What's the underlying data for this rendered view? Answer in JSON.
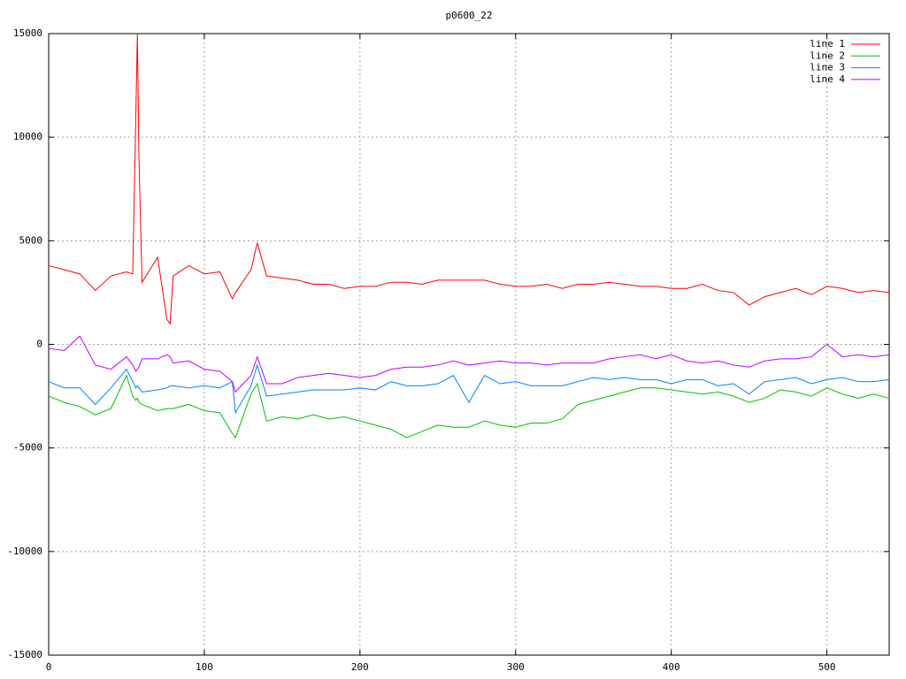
{
  "chart_data": {
    "type": "line",
    "title": "p0600_22",
    "x": [
      0,
      10,
      20,
      30,
      40,
      50,
      54,
      56,
      57,
      58,
      60,
      70,
      76,
      78,
      80,
      90,
      100,
      110,
      118,
      120,
      130,
      134,
      140,
      150,
      160,
      170,
      180,
      190,
      200,
      210,
      220,
      230,
      240,
      250,
      260,
      270,
      280,
      290,
      300,
      310,
      320,
      330,
      340,
      350,
      360,
      370,
      380,
      390,
      400,
      410,
      420,
      430,
      440,
      450,
      460,
      470,
      480,
      490,
      500,
      510,
      520,
      530,
      540
    ],
    "series": [
      {
        "name": "line 1",
        "color": "#ff0000",
        "values": [
          3800,
          3600,
          3400,
          2600,
          3300,
          3500,
          3400,
          11000,
          15000,
          9000,
          3000,
          4200,
          1200,
          1000,
          3300,
          3800,
          3400,
          3500,
          2200,
          2500,
          3600,
          4900,
          3300,
          3200,
          3100,
          2900,
          2900,
          2700,
          2800,
          2800,
          3000,
          3000,
          2900,
          3100,
          3100,
          3100,
          3100,
          2900,
          2800,
          2800,
          2900,
          2700,
          2900,
          2900,
          3000,
          2900,
          2800,
          2800,
          2700,
          2700,
          2900,
          2600,
          2500,
          1900,
          2300,
          2500,
          2700,
          2400,
          2800,
          2700,
          2500,
          2600,
          2500
        ]
      },
      {
        "name": "line 2",
        "color": "#00c000",
        "values": [
          -2500,
          -2800,
          -3000,
          -3400,
          -3100,
          -1500,
          -2500,
          -2700,
          -2600,
          -2800,
          -2900,
          -3200,
          -3100,
          -3100,
          -3100,
          -2900,
          -3200,
          -3300,
          -4300,
          -4500,
          -2400,
          -1900,
          -3700,
          -3500,
          -3600,
          -3400,
          -3600,
          -3500,
          -3700,
          -3900,
          -4100,
          -4500,
          -4200,
          -3900,
          -4000,
          -4000,
          -3700,
          -3900,
          -4000,
          -3800,
          -3800,
          -3600,
          -2900,
          -2700,
          -2500,
          -2300,
          -2100,
          -2100,
          -2200,
          -2300,
          -2400,
          -2300,
          -2500,
          -2800,
          -2600,
          -2200,
          -2300,
          -2500,
          -2100,
          -2400,
          -2600,
          -2400,
          -2600
        ]
      },
      {
        "name": "line 3",
        "color": "#0080ff",
        "values": [
          -1800,
          -2100,
          -2100,
          -2900,
          -2100,
          -1200,
          -1800,
          -2100,
          -2000,
          -2100,
          -2300,
          -2200,
          -2100,
          -2000,
          -2000,
          -2100,
          -2000,
          -2100,
          -1800,
          -3300,
          -2000,
          -1000,
          -2500,
          -2400,
          -2300,
          -2200,
          -2200,
          -2200,
          -2100,
          -2200,
          -1800,
          -2000,
          -2000,
          -1900,
          -1500,
          -2800,
          -1500,
          -1900,
          -1800,
          -2000,
          -2000,
          -2000,
          -1800,
          -1600,
          -1700,
          -1600,
          -1700,
          -1700,
          -1900,
          -1700,
          -1700,
          -2000,
          -1900,
          -2400,
          -1800,
          -1700,
          -1600,
          -1900,
          -1700,
          -1600,
          -1800,
          -1800,
          -1700
        ]
      },
      {
        "name": "line 4",
        "color": "#c000ff",
        "values": [
          -200,
          -300,
          400,
          -1000,
          -1200,
          -600,
          -1000,
          -1300,
          -1200,
          -1100,
          -700,
          -700,
          -500,
          -600,
          -900,
          -800,
          -1200,
          -1300,
          -1800,
          -2300,
          -1500,
          -600,
          -1900,
          -1900,
          -1600,
          -1500,
          -1400,
          -1500,
          -1600,
          -1500,
          -1200,
          -1100,
          -1100,
          -1000,
          -800,
          -1000,
          -900,
          -800,
          -900,
          -900,
          -1000,
          -900,
          -900,
          -900,
          -700,
          -600,
          -500,
          -700,
          -500,
          -800,
          -900,
          -800,
          -1000,
          -1100,
          -800,
          -700,
          -700,
          -600,
          0,
          -600,
          -500,
          -600,
          -500
        ]
      }
    ],
    "xlim": [
      0,
      540
    ],
    "xticks": [
      0,
      100,
      200,
      300,
      400,
      500
    ],
    "ylim": [
      -15000,
      15000
    ],
    "yticks": [
      -15000,
      -10000,
      -5000,
      0,
      5000,
      10000,
      15000
    ],
    "grid": true,
    "legend": "top-right"
  }
}
